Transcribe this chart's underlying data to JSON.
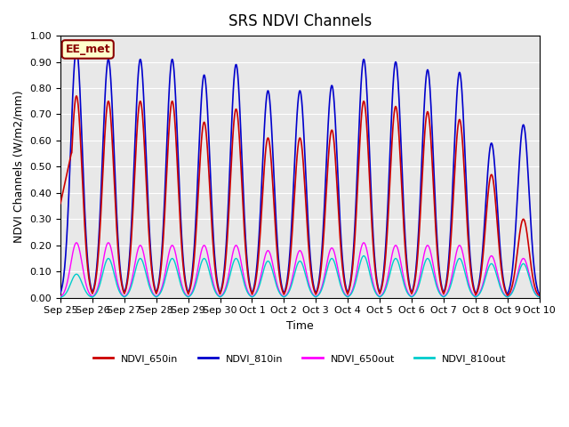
{
  "title": "SRS NDVI Channels",
  "ylabel": "NDVI Channels (W/m2/mm)",
  "xlabel": "Time",
  "ylim": [
    0.0,
    1.0
  ],
  "yticks": [
    0.0,
    0.1,
    0.2,
    0.3,
    0.4,
    0.5,
    0.6,
    0.7,
    0.8,
    0.9,
    1.0
  ],
  "bg_color": "#e8e8e8",
  "annotation_text": "EE_met",
  "annotation_color": "#8b0000",
  "annotation_bg": "#ffffcc",
  "annotation_border": "#8b0000",
  "series": {
    "NDVI_650in": {
      "color": "#cc0000",
      "lw": 1.2
    },
    "NDVI_810in": {
      "color": "#0000cc",
      "lw": 1.2
    },
    "NDVI_650out": {
      "color": "#ff00ff",
      "lw": 1.0
    },
    "NDVI_810out": {
      "color": "#00cccc",
      "lw": 1.0
    }
  },
  "day_labels": [
    "Sep 25",
    "Sep 26",
    "Sep 27",
    "Sep 28",
    "Sep 29",
    "Sep 30",
    "Oct 1",
    "Oct 2",
    "Oct 3",
    "Oct 4",
    "Oct 5",
    "Oct 6",
    "Oct 7",
    "Oct 8",
    "Oct 9",
    "Oct 10"
  ],
  "peaks_650in": [
    0.77,
    0.75,
    0.75,
    0.75,
    0.67,
    0.72,
    0.61,
    0.61,
    0.64,
    0.75,
    0.73,
    0.71,
    0.68,
    0.47,
    0.3
  ],
  "peaks_810in": [
    0.95,
    0.91,
    0.91,
    0.91,
    0.85,
    0.89,
    0.79,
    0.79,
    0.81,
    0.91,
    0.9,
    0.87,
    0.86,
    0.59,
    0.66
  ],
  "peaks_650out": [
    0.21,
    0.21,
    0.2,
    0.2,
    0.2,
    0.2,
    0.18,
    0.18,
    0.19,
    0.21,
    0.2,
    0.2,
    0.2,
    0.16,
    0.15
  ],
  "peaks_810out": [
    0.09,
    0.15,
    0.15,
    0.15,
    0.15,
    0.15,
    0.14,
    0.14,
    0.15,
    0.16,
    0.15,
    0.15,
    0.15,
    0.13,
    0.13
  ],
  "first_val_650in": 0.36,
  "legend_labels": [
    "NDVI_650in",
    "NDVI_810in",
    "NDVI_650out",
    "NDVI_810out"
  ],
  "legend_colors": [
    "#cc0000",
    "#0000cc",
    "#ff00ff",
    "#00cccc"
  ]
}
